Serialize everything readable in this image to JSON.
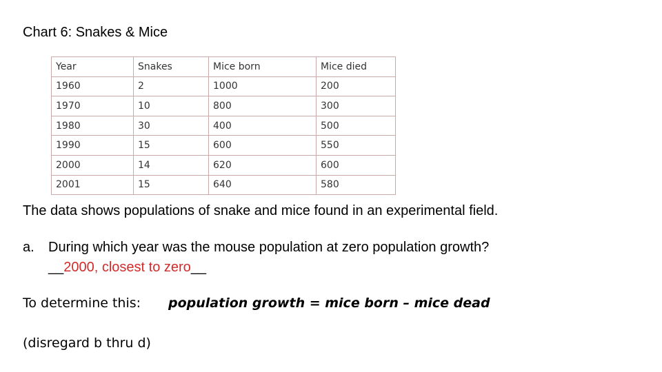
{
  "title": "Chart 6: Snakes & Mice",
  "table": {
    "headers": [
      "Year",
      "Snakes",
      "Mice born",
      "Mice died"
    ],
    "rows": [
      [
        "1960",
        "2",
        "1000",
        "200"
      ],
      [
        "1970",
        "10",
        "800",
        "300"
      ],
      [
        "1980",
        "30",
        "400",
        "500"
      ],
      [
        "1990",
        "15",
        "600",
        "550"
      ],
      [
        "2000",
        "14",
        "620",
        "600"
      ],
      [
        "2001",
        "15",
        "640",
        "580"
      ]
    ]
  },
  "description": "The data shows populations of snake and mice found in an experimental field.",
  "question": {
    "number": "a.",
    "text": "During which year was the mouse population at zero population growth?",
    "blank_before": "__",
    "answer": "2000, closest to zero",
    "blank_after": "__"
  },
  "determine_label": "To determine this:",
  "formula": "population growth  =  mice born – mice dead",
  "disregard": "(disregard  b thru d)",
  "colors": {
    "answer": "#d22b2b",
    "table_border": "#c9a9a9"
  }
}
